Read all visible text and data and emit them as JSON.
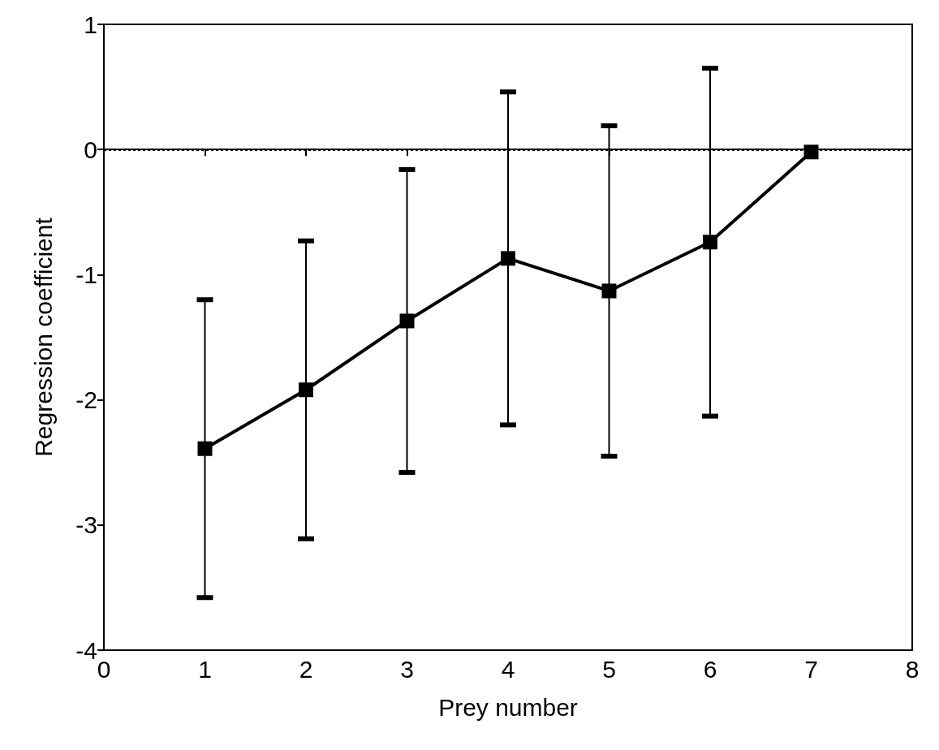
{
  "chart_data": {
    "type": "line",
    "xlabel": "Prey number",
    "ylabel": "Regression coefficient",
    "x": [
      1,
      2,
      3,
      4,
      5,
      6,
      7
    ],
    "series": [
      {
        "color": "#000000",
        "values": [
          -2.39,
          -1.92,
          -1.37,
          -0.87,
          -1.13,
          -0.74,
          -0.02
        ],
        "errors": [
          1.19,
          1.19,
          1.21,
          1.33,
          1.32,
          1.39,
          null
        ]
      }
    ],
    "xlim": [
      0,
      8
    ],
    "xticks": [
      0,
      1,
      2,
      3,
      4,
      5,
      6,
      7,
      8
    ],
    "ylim": [
      -4,
      1
    ],
    "yticks": [
      -4,
      -3,
      -2,
      -1,
      0,
      1
    ],
    "ref_lines": [
      {
        "axis": "y",
        "value": 0,
        "line_style": "dotted"
      }
    ],
    "marker": "square",
    "line_style": "solid"
  }
}
